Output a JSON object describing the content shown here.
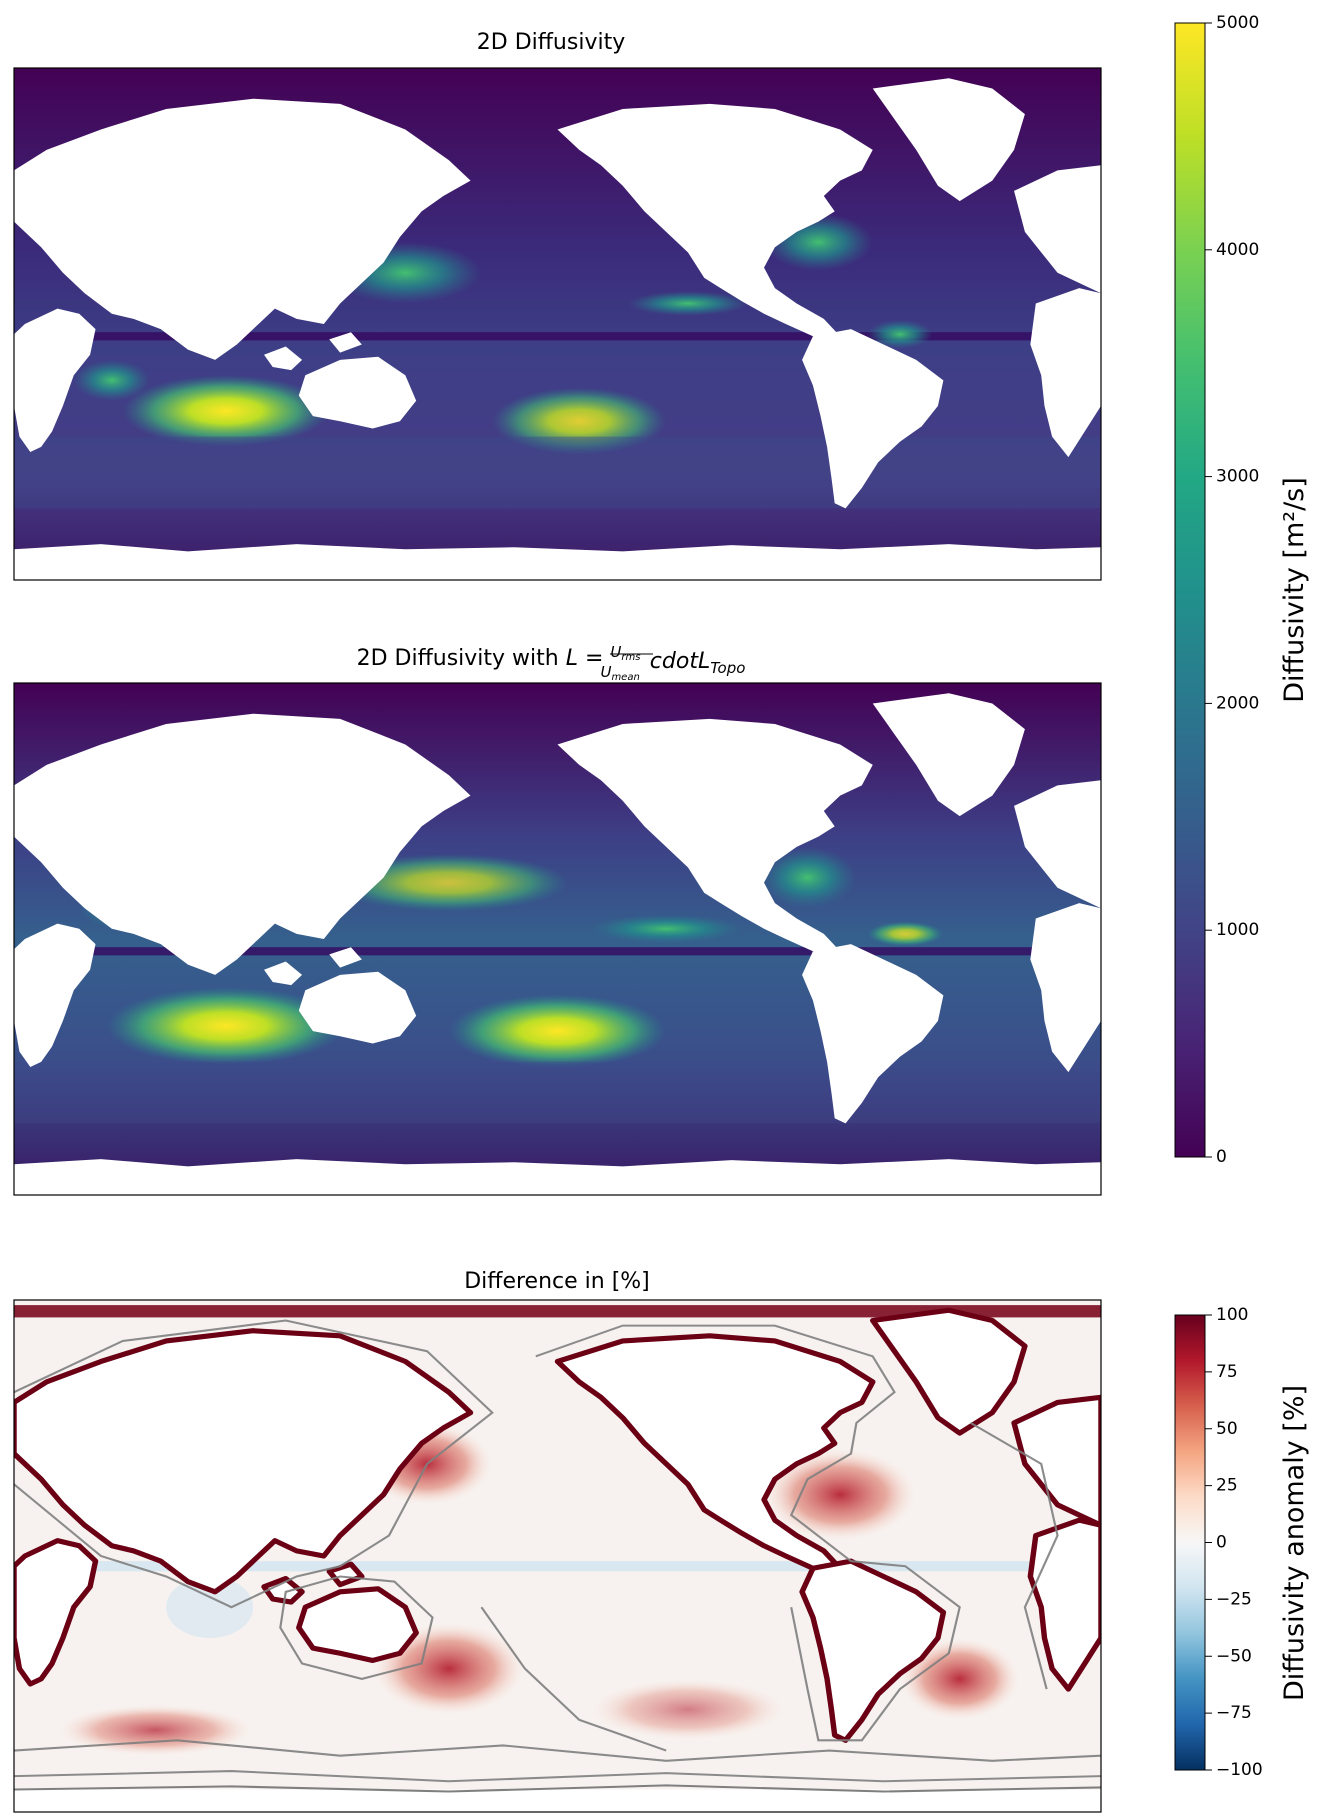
{
  "chart_data": [
    {
      "type": "heatmap",
      "title": "2D Diffusivity",
      "shared_colorbar": {
        "label": "Diffusivity [m²/s]",
        "colormap": "viridis",
        "range": [
          0,
          5000
        ],
        "ticks": [
          0,
          1000,
          2000,
          3000,
          4000,
          5000
        ],
        "tick_labels": [
          "0",
          "1000",
          "2000",
          "3000",
          "4000",
          "5000"
        ]
      },
      "field": "global ocean map of diffusivity; land masked white"
    },
    {
      "type": "heatmap",
      "title": "2D Diffusivity with L = U_rms/U_mean cdotL_Topo",
      "title_parts": {
        "prefix": "2D Diffusivity with ",
        "L": "L",
        "eq": " = ",
        "num": "U",
        "num_sub": "rms",
        "den": "U",
        "den_sub": "mean",
        "suffix": "cdotL",
        "suffix_sub": "Topo"
      },
      "colorbar": "shared with panel 1 (0–5000 m²/s)"
    },
    {
      "type": "heatmap",
      "title": "Difference in [%]",
      "colorbar": {
        "label": "Diffusivity anomaly [%]",
        "colormap": "RdBu_r",
        "range": [
          -100,
          100
        ],
        "ticks": [
          -100,
          -75,
          -50,
          -25,
          0,
          25,
          50,
          75,
          100
        ],
        "tick_labels": [
          "−100",
          "−75",
          "−50",
          "−25",
          "0",
          "25",
          "50",
          "75",
          "100"
        ]
      },
      "overlay": "grey topographic contours"
    }
  ],
  "colors": {
    "viridis": [
      "#440154",
      "#482475",
      "#414487",
      "#355f8d",
      "#2a788e",
      "#21918c",
      "#22a884",
      "#44bf70",
      "#7ad151",
      "#bddf26",
      "#fde725"
    ],
    "rdbu_r": [
      "#053061",
      "#2166ac",
      "#4393c3",
      "#92c5de",
      "#d1e5f0",
      "#f7f7f7",
      "#fddbc7",
      "#f4a582",
      "#d6604d",
      "#b2182b",
      "#67001f"
    ],
    "land": "#ffffff",
    "contour": "#7f7f7f"
  }
}
